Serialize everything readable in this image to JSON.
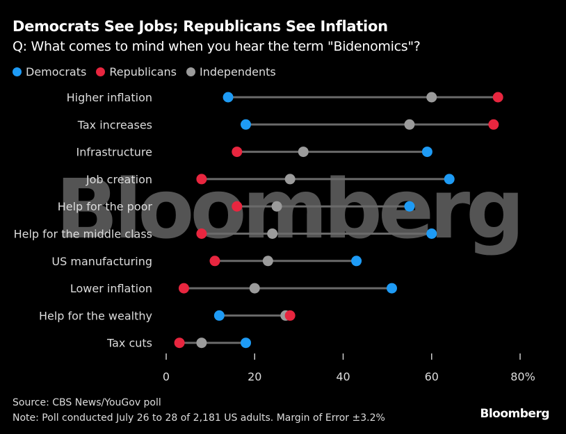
{
  "header": {
    "title": "Democrats See Jobs; Republicans See Inflation",
    "subtitle": "Q: What comes to mind when you hear the term \"Bidenomics\"?"
  },
  "watermark": "Bloomberg",
  "colors": {
    "Democrats": "#1e9bf5",
    "Republicans": "#e8263f",
    "Independents": "#9b9b9b",
    "connector": "#6a6a6a"
  },
  "chart_data": {
    "type": "dot",
    "title": "Democrats See Jobs; Republicans See Inflation",
    "xlabel": "",
    "ylabel": "",
    "xlim": [
      0,
      80
    ],
    "xticks": [
      0,
      20,
      40,
      60,
      80
    ],
    "xtick_labels": [
      "0",
      "20",
      "40",
      "60",
      "80%"
    ],
    "legend_position": "top-left",
    "categories": [
      "Higher inflation",
      "Tax increases",
      "Infrastructure",
      "Job creation",
      "Help for the poor",
      "Help for the middle class",
      "US manufacturing",
      "Lower inflation",
      "Help for the wealthy",
      "Tax cuts"
    ],
    "series": [
      {
        "name": "Democrats",
        "values": [
          14,
          18,
          59,
          64,
          55,
          60,
          43,
          51,
          12,
          18
        ]
      },
      {
        "name": "Republicans",
        "values": [
          75,
          74,
          16,
          8,
          16,
          8,
          11,
          4,
          28,
          3
        ]
      },
      {
        "name": "Independents",
        "values": [
          60,
          55,
          31,
          28,
          25,
          24,
          23,
          20,
          27,
          8
        ]
      }
    ]
  },
  "footer": {
    "source": "Source: CBS News/YouGov poll",
    "note": "Note: Poll conducted July 26 to 28 of 2,181 US adults. Margin of Error ±3.2%",
    "brand": "Bloomberg"
  }
}
